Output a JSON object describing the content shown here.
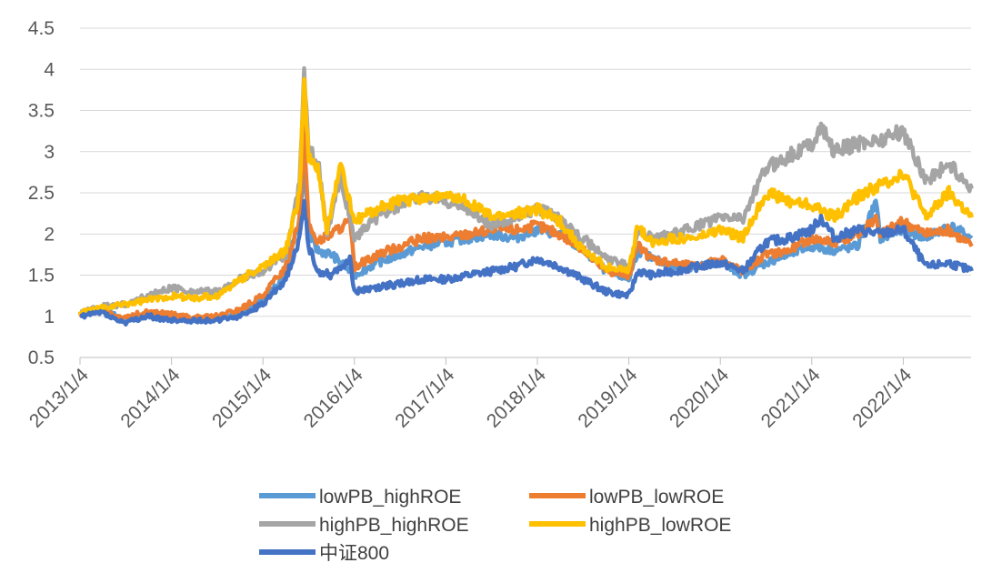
{
  "chart_data": {
    "type": "line",
    "title": "",
    "xlabel": "",
    "ylabel": "",
    "ylim": [
      0.5,
      4.5
    ],
    "y_ticks": [
      0.5,
      1,
      1.5,
      2,
      2.5,
      3,
      3.5,
      4,
      4.5
    ],
    "y_tick_labels": [
      "0.5",
      "1",
      "1.5",
      "2",
      "2.5",
      "3",
      "3.5",
      "4",
      "4.5"
    ],
    "x_tick_labels": [
      "2013/1/4",
      "2014/1/4",
      "2015/1/4",
      "2016/1/4",
      "2017/1/4",
      "2018/1/4",
      "2019/1/4",
      "2020/1/4",
      "2021/1/4",
      "2022/1/4"
    ],
    "x_range": [
      2013.0,
      2022.75
    ],
    "grid": "horizontal",
    "legend_position": "bottom",
    "series": [
      {
        "name": "lowPB_highROE",
        "color": "#5B9BD5",
        "points": [
          [
            2013.0,
            1.03
          ],
          [
            2013.25,
            1.08
          ],
          [
            2013.4,
            1.0
          ],
          [
            2013.5,
            0.97
          ],
          [
            2013.75,
            1.03
          ],
          [
            2014.0,
            1.0
          ],
          [
            2014.25,
            0.96
          ],
          [
            2014.5,
            0.98
          ],
          [
            2014.75,
            1.05
          ],
          [
            2015.0,
            1.18
          ],
          [
            2015.25,
            1.5
          ],
          [
            2015.4,
            2.2
          ],
          [
            2015.45,
            2.85
          ],
          [
            2015.5,
            2.0
          ],
          [
            2015.6,
            1.8
          ],
          [
            2015.75,
            1.75
          ],
          [
            2016.0,
            1.5
          ],
          [
            2016.25,
            1.65
          ],
          [
            2016.5,
            1.75
          ],
          [
            2016.75,
            1.85
          ],
          [
            2017.0,
            1.9
          ],
          [
            2017.25,
            1.95
          ],
          [
            2017.5,
            2.0
          ],
          [
            2017.75,
            1.95
          ],
          [
            2018.0,
            2.05
          ],
          [
            2018.25,
            2.0
          ],
          [
            2018.5,
            1.8
          ],
          [
            2018.75,
            1.55
          ],
          [
            2019.0,
            1.45
          ],
          [
            2019.1,
            1.8
          ],
          [
            2019.25,
            1.7
          ],
          [
            2019.5,
            1.6
          ],
          [
            2019.75,
            1.6
          ],
          [
            2020.0,
            1.65
          ],
          [
            2020.25,
            1.5
          ],
          [
            2020.5,
            1.65
          ],
          [
            2020.75,
            1.75
          ],
          [
            2021.0,
            1.85
          ],
          [
            2021.25,
            1.8
          ],
          [
            2021.5,
            1.85
          ],
          [
            2021.7,
            2.38
          ],
          [
            2021.75,
            1.95
          ],
          [
            2022.0,
            2.05
          ],
          [
            2022.25,
            1.95
          ],
          [
            2022.5,
            2.1
          ],
          [
            2022.75,
            1.95
          ]
        ]
      },
      {
        "name": "lowPB_lowROE",
        "color": "#ED7D31",
        "points": [
          [
            2013.0,
            1.03
          ],
          [
            2013.25,
            1.08
          ],
          [
            2013.4,
            1.0
          ],
          [
            2013.5,
            1.0
          ],
          [
            2013.75,
            1.05
          ],
          [
            2014.0,
            1.02
          ],
          [
            2014.25,
            0.98
          ],
          [
            2014.5,
            1.0
          ],
          [
            2014.75,
            1.08
          ],
          [
            2015.0,
            1.25
          ],
          [
            2015.25,
            1.6
          ],
          [
            2015.4,
            2.2
          ],
          [
            2015.45,
            3.3
          ],
          [
            2015.5,
            2.1
          ],
          [
            2015.6,
            1.9
          ],
          [
            2015.75,
            2.0
          ],
          [
            2015.95,
            2.15
          ],
          [
            2016.0,
            1.6
          ],
          [
            2016.25,
            1.75
          ],
          [
            2016.5,
            1.85
          ],
          [
            2016.75,
            1.95
          ],
          [
            2017.0,
            1.95
          ],
          [
            2017.25,
            2.0
          ],
          [
            2017.5,
            2.05
          ],
          [
            2017.75,
            2.05
          ],
          [
            2018.0,
            2.1
          ],
          [
            2018.25,
            2.0
          ],
          [
            2018.5,
            1.8
          ],
          [
            2018.75,
            1.55
          ],
          [
            2019.0,
            1.5
          ],
          [
            2019.1,
            1.85
          ],
          [
            2019.25,
            1.7
          ],
          [
            2019.5,
            1.65
          ],
          [
            2019.75,
            1.6
          ],
          [
            2020.0,
            1.7
          ],
          [
            2020.25,
            1.55
          ],
          [
            2020.5,
            1.75
          ],
          [
            2020.75,
            1.8
          ],
          [
            2021.0,
            1.95
          ],
          [
            2021.25,
            1.9
          ],
          [
            2021.5,
            2.0
          ],
          [
            2021.7,
            2.2
          ],
          [
            2021.75,
            2.0
          ],
          [
            2022.0,
            2.15
          ],
          [
            2022.25,
            2.0
          ],
          [
            2022.5,
            2.05
          ],
          [
            2022.75,
            1.85
          ]
        ]
      },
      {
        "name": "highPB_highROE",
        "color": "#A5A5A5",
        "points": [
          [
            2013.0,
            1.05
          ],
          [
            2013.25,
            1.12
          ],
          [
            2013.5,
            1.15
          ],
          [
            2013.75,
            1.25
          ],
          [
            2014.0,
            1.35
          ],
          [
            2014.25,
            1.3
          ],
          [
            2014.5,
            1.3
          ],
          [
            2014.75,
            1.45
          ],
          [
            2015.0,
            1.55
          ],
          [
            2015.25,
            1.75
          ],
          [
            2015.4,
            2.6
          ],
          [
            2015.45,
            3.95
          ],
          [
            2015.5,
            3.0
          ],
          [
            2015.6,
            2.9
          ],
          [
            2015.7,
            2.0
          ],
          [
            2015.85,
            2.7
          ],
          [
            2016.0,
            1.95
          ],
          [
            2016.25,
            2.2
          ],
          [
            2016.5,
            2.35
          ],
          [
            2016.75,
            2.45
          ],
          [
            2017.0,
            2.4
          ],
          [
            2017.25,
            2.3
          ],
          [
            2017.5,
            2.1
          ],
          [
            2017.75,
            2.2
          ],
          [
            2018.0,
            2.3
          ],
          [
            2018.25,
            2.2
          ],
          [
            2018.5,
            1.95
          ],
          [
            2018.75,
            1.7
          ],
          [
            2019.0,
            1.6
          ],
          [
            2019.1,
            2.05
          ],
          [
            2019.25,
            1.95
          ],
          [
            2019.5,
            2.0
          ],
          [
            2019.75,
            2.1
          ],
          [
            2020.0,
            2.2
          ],
          [
            2020.25,
            2.2
          ],
          [
            2020.5,
            2.8
          ],
          [
            2020.75,
            2.95
          ],
          [
            2021.0,
            3.1
          ],
          [
            2021.1,
            3.3
          ],
          [
            2021.25,
            3.0
          ],
          [
            2021.5,
            3.1
          ],
          [
            2021.75,
            3.15
          ],
          [
            2022.0,
            3.25
          ],
          [
            2022.25,
            2.65
          ],
          [
            2022.5,
            2.85
          ],
          [
            2022.75,
            2.55
          ]
        ]
      },
      {
        "name": "highPB_lowROE",
        "color": "#FFC000",
        "points": [
          [
            2013.0,
            1.05
          ],
          [
            2013.25,
            1.1
          ],
          [
            2013.5,
            1.15
          ],
          [
            2013.75,
            1.2
          ],
          [
            2014.0,
            1.25
          ],
          [
            2014.25,
            1.22
          ],
          [
            2014.5,
            1.25
          ],
          [
            2014.75,
            1.45
          ],
          [
            2015.0,
            1.6
          ],
          [
            2015.25,
            1.8
          ],
          [
            2015.4,
            2.5
          ],
          [
            2015.45,
            3.85
          ],
          [
            2015.5,
            2.9
          ],
          [
            2015.6,
            2.8
          ],
          [
            2015.7,
            2.05
          ],
          [
            2015.85,
            2.85
          ],
          [
            2016.0,
            2.15
          ],
          [
            2016.25,
            2.3
          ],
          [
            2016.5,
            2.4
          ],
          [
            2016.75,
            2.45
          ],
          [
            2017.0,
            2.45
          ],
          [
            2017.25,
            2.4
          ],
          [
            2017.5,
            2.2
          ],
          [
            2017.75,
            2.25
          ],
          [
            2018.0,
            2.3
          ],
          [
            2018.25,
            2.15
          ],
          [
            2018.5,
            1.8
          ],
          [
            2018.75,
            1.6
          ],
          [
            2019.0,
            1.55
          ],
          [
            2019.1,
            2.1
          ],
          [
            2019.25,
            1.9
          ],
          [
            2019.5,
            1.95
          ],
          [
            2019.75,
            1.95
          ],
          [
            2020.0,
            2.05
          ],
          [
            2020.25,
            1.95
          ],
          [
            2020.5,
            2.5
          ],
          [
            2020.75,
            2.4
          ],
          [
            2021.0,
            2.35
          ],
          [
            2021.25,
            2.2
          ],
          [
            2021.5,
            2.45
          ],
          [
            2021.75,
            2.6
          ],
          [
            2022.0,
            2.75
          ],
          [
            2022.25,
            2.2
          ],
          [
            2022.5,
            2.5
          ],
          [
            2022.75,
            2.2
          ]
        ]
      },
      {
        "name": "中证800",
        "color": "#4472C4",
        "points": [
          [
            2013.0,
            1.0
          ],
          [
            2013.25,
            1.05
          ],
          [
            2013.4,
            0.95
          ],
          [
            2013.5,
            0.92
          ],
          [
            2013.75,
            1.0
          ],
          [
            2014.0,
            0.95
          ],
          [
            2014.25,
            0.95
          ],
          [
            2014.5,
            0.95
          ],
          [
            2014.75,
            1.0
          ],
          [
            2015.0,
            1.15
          ],
          [
            2015.25,
            1.45
          ],
          [
            2015.4,
            1.95
          ],
          [
            2015.45,
            2.4
          ],
          [
            2015.5,
            1.85
          ],
          [
            2015.6,
            1.55
          ],
          [
            2015.75,
            1.5
          ],
          [
            2015.95,
            1.7
          ],
          [
            2016.0,
            1.3
          ],
          [
            2016.25,
            1.35
          ],
          [
            2016.5,
            1.4
          ],
          [
            2016.75,
            1.45
          ],
          [
            2017.0,
            1.45
          ],
          [
            2017.25,
            1.5
          ],
          [
            2017.5,
            1.55
          ],
          [
            2017.75,
            1.6
          ],
          [
            2018.0,
            1.7
          ],
          [
            2018.25,
            1.6
          ],
          [
            2018.5,
            1.45
          ],
          [
            2018.75,
            1.3
          ],
          [
            2019.0,
            1.25
          ],
          [
            2019.1,
            1.55
          ],
          [
            2019.25,
            1.5
          ],
          [
            2019.5,
            1.55
          ],
          [
            2019.75,
            1.6
          ],
          [
            2020.0,
            1.65
          ],
          [
            2020.25,
            1.55
          ],
          [
            2020.5,
            1.9
          ],
          [
            2020.75,
            1.95
          ],
          [
            2021.0,
            2.05
          ],
          [
            2021.1,
            2.2
          ],
          [
            2021.25,
            1.95
          ],
          [
            2021.5,
            2.05
          ],
          [
            2021.75,
            2.0
          ],
          [
            2022.0,
            2.05
          ],
          [
            2022.25,
            1.6
          ],
          [
            2022.5,
            1.65
          ],
          [
            2022.75,
            1.55
          ]
        ]
      }
    ]
  }
}
